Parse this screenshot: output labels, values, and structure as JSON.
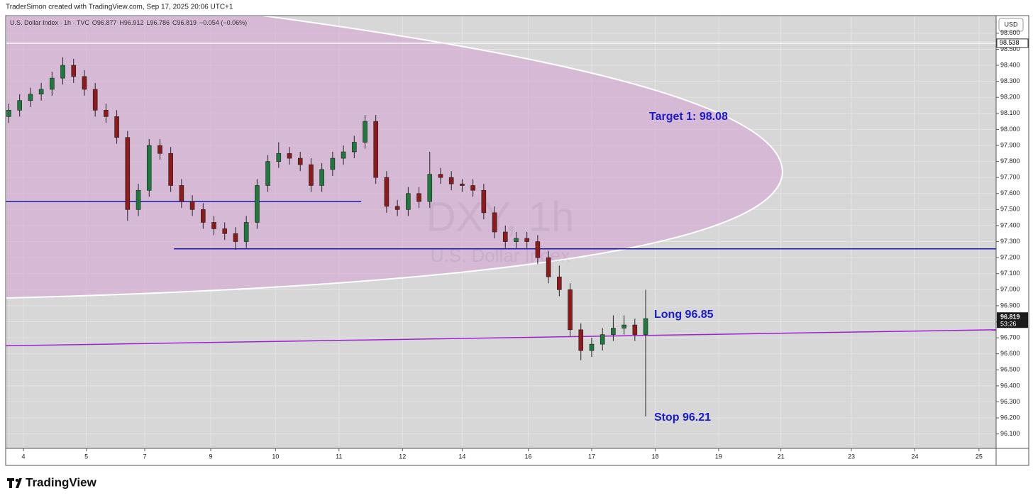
{
  "header": "TraderSimon created with TradingView.com, Sep 17, 2025 20:06 UTC+1",
  "logo": "TradingView",
  "chart_data": {
    "type": "candlestick",
    "legend": {
      "symbol": "U.S. Dollar Index · 1h · TVC",
      "o_label": "O",
      "o": 96.877,
      "h_label": "H",
      "h": 96.912,
      "l_label": "L",
      "l": 96.786,
      "c_label": "C",
      "c": 96.819,
      "change": "−0.054 (−0.06%)"
    },
    "watermark": "DXY, 1h",
    "watermark_sub": "U.S. Dollar Index",
    "currency": "USD",
    "line_price": {
      "value": 98.538,
      "label": "98.538"
    },
    "countdown": "53:26",
    "annotations": [
      "Target 1: 98.08",
      "Long 96.85",
      "Stop 96.21"
    ],
    "up_color": "#1e7a3c",
    "down_color": "#8e1b1b",
    "x": [
      0.05,
      0.22,
      0.39,
      0.56,
      0.73,
      0.9,
      1.07,
      1.24,
      1.41,
      1.58,
      1.75,
      1.92,
      2.09,
      2.26,
      2.43,
      2.6,
      2.77,
      2.94,
      3.11,
      3.28,
      3.45,
      3.62,
      3.79,
      3.96,
      4.13,
      4.3,
      4.47,
      4.64,
      4.81,
      4.98,
      5.15,
      5.32,
      5.49,
      5.66,
      5.83,
      6.0,
      6.17,
      6.34,
      6.51,
      6.68,
      6.85,
      7.02,
      7.19,
      7.36,
      7.53,
      7.7,
      7.87,
      8.04,
      8.21,
      8.38,
      8.55,
      8.72,
      8.89,
      9.06,
      9.23,
      9.4,
      9.57,
      9.74,
      9.91,
      10.08
    ],
    "open": [
      98.08,
      98.12,
      98.18,
      98.22,
      98.25,
      98.32,
      98.4,
      98.33,
      98.25,
      98.12,
      98.08,
      97.95,
      97.5,
      97.62,
      97.9,
      97.85,
      97.65,
      97.55,
      97.5,
      97.42,
      97.38,
      97.35,
      97.3,
      97.42,
      97.65,
      97.8,
      97.85,
      97.82,
      97.78,
      97.65,
      97.75,
      97.82,
      97.86,
      97.92,
      98.05,
      97.7,
      97.52,
      97.5,
      97.6,
      97.55,
      97.72,
      97.7,
      97.66,
      97.65,
      97.62,
      97.48,
      97.36,
      97.3,
      97.32,
      97.3,
      97.2,
      97.08,
      97.0,
      96.75,
      96.62,
      96.66,
      96.72,
      96.76,
      96.78,
      96.72
    ],
    "high": [
      98.16,
      98.22,
      98.26,
      98.29,
      98.36,
      98.45,
      98.44,
      98.37,
      98.29,
      98.16,
      98.12,
      97.99,
      97.66,
      97.94,
      97.94,
      97.89,
      97.69,
      97.59,
      97.54,
      97.46,
      97.42,
      97.39,
      97.46,
      97.69,
      97.84,
      97.92,
      97.89,
      97.86,
      97.82,
      97.79,
      97.86,
      97.9,
      97.96,
      98.09,
      98.09,
      97.74,
      97.56,
      97.64,
      97.64,
      97.86,
      97.76,
      97.74,
      97.69,
      97.69,
      97.66,
      97.52,
      97.4,
      97.36,
      97.36,
      97.34,
      97.24,
      97.15,
      97.04,
      96.79,
      96.7,
      96.76,
      96.84,
      96.84,
      96.82,
      97.0
    ],
    "low": [
      98.04,
      98.08,
      98.14,
      98.18,
      98.21,
      98.28,
      98.29,
      98.21,
      98.08,
      98.04,
      97.91,
      97.43,
      97.46,
      97.58,
      97.81,
      97.61,
      97.51,
      97.46,
      97.38,
      97.34,
      97.31,
      97.25,
      97.26,
      97.38,
      97.61,
      97.76,
      97.78,
      97.74,
      97.61,
      97.61,
      97.71,
      97.78,
      97.82,
      97.88,
      97.66,
      97.48,
      97.46,
      97.46,
      97.51,
      97.51,
      97.66,
      97.62,
      97.61,
      97.58,
      97.44,
      97.32,
      97.26,
      97.26,
      97.26,
      97.16,
      97.04,
      96.96,
      96.71,
      96.56,
      96.58,
      96.62,
      96.68,
      96.72,
      96.68,
      96.21
    ],
    "close": [
      98.12,
      98.18,
      98.22,
      98.25,
      98.32,
      98.4,
      98.33,
      98.25,
      98.12,
      98.08,
      97.95,
      97.5,
      97.62,
      97.9,
      97.85,
      97.65,
      97.55,
      97.5,
      97.42,
      97.38,
      97.35,
      97.3,
      97.42,
      97.65,
      97.8,
      97.85,
      97.82,
      97.78,
      97.65,
      97.75,
      97.82,
      97.86,
      97.92,
      98.05,
      97.7,
      97.52,
      97.5,
      97.6,
      97.55,
      97.72,
      97.7,
      97.66,
      97.65,
      97.62,
      97.48,
      97.36,
      97.3,
      97.32,
      97.3,
      97.2,
      97.08,
      97.0,
      96.75,
      96.62,
      96.66,
      96.72,
      96.76,
      96.78,
      96.72,
      96.82
    ],
    "hlines": [
      {
        "price": 97.55,
        "x": [
          0,
          5.6
        ],
        "color": "#1a1aa6"
      },
      {
        "price": 97.255,
        "x": [
          2.65,
          15.6
        ],
        "color": "#1a1aa6"
      }
    ],
    "trendline": {
      "price": [
        96.65,
        96.75
      ],
      "x": [
        0,
        15.6
      ],
      "color": "#a020d0"
    },
    "xlim": [
      0,
      15.6
    ],
    "xticks": [
      {
        "value": 0.28,
        "label": "4"
      },
      {
        "value": 1.27,
        "label": "5"
      },
      {
        "value": 2.19,
        "label": "7"
      },
      {
        "value": 3.23,
        "label": "9"
      },
      {
        "value": 4.25,
        "label": "10"
      },
      {
        "value": 5.25,
        "label": "11"
      },
      {
        "value": 6.25,
        "label": "12"
      },
      {
        "value": 7.19,
        "label": "14"
      },
      {
        "value": 8.23,
        "label": "16"
      },
      {
        "value": 9.23,
        "label": "17"
      },
      {
        "value": 10.23,
        "label": "18"
      },
      {
        "value": 11.23,
        "label": "19"
      },
      {
        "value": 12.21,
        "label": "21"
      },
      {
        "value": 13.32,
        "label": "23"
      },
      {
        "value": 14.32,
        "label": "24"
      },
      {
        "value": 15.33,
        "label": "25"
      }
    ],
    "ylim": [
      96.01,
      98.71
    ],
    "yticks": [
      {
        "value": 96.1,
        "label": "96.100"
      },
      {
        "value": 96.2,
        "label": "96.200"
      },
      {
        "value": 96.3,
        "label": "96.300"
      },
      {
        "value": 96.4,
        "label": "96.400"
      },
      {
        "value": 96.5,
        "label": "96.500"
      },
      {
        "value": 96.6,
        "label": "96.600"
      },
      {
        "value": 96.7,
        "label": "96.700"
      },
      {
        "value": 96.8,
        "label": "96.800"
      },
      {
        "value": 96.9,
        "label": "96.900"
      },
      {
        "value": 97.0,
        "label": "97.000"
      },
      {
        "value": 97.1,
        "label": "97.100"
      },
      {
        "value": 97.2,
        "label": "97.200"
      },
      {
        "value": 97.3,
        "label": "97.300"
      },
      {
        "value": 97.4,
        "label": "97.400"
      },
      {
        "value": 97.5,
        "label": "97.500"
      },
      {
        "value": 97.6,
        "label": "97.600"
      },
      {
        "value": 97.7,
        "label": "97.700"
      },
      {
        "value": 97.8,
        "label": "97.800"
      },
      {
        "value": 97.9,
        "label": "97.900"
      },
      {
        "value": 98.0,
        "label": "98.000"
      },
      {
        "value": 98.1,
        "label": "98.100"
      },
      {
        "value": 98.2,
        "label": "98.200"
      },
      {
        "value": 98.3,
        "label": "98.300"
      },
      {
        "value": 98.4,
        "label": "98.400"
      },
      {
        "value": 98.5,
        "label": "98.500"
      },
      {
        "value": 98.6,
        "label": "98.600"
      }
    ],
    "grid": true
  }
}
